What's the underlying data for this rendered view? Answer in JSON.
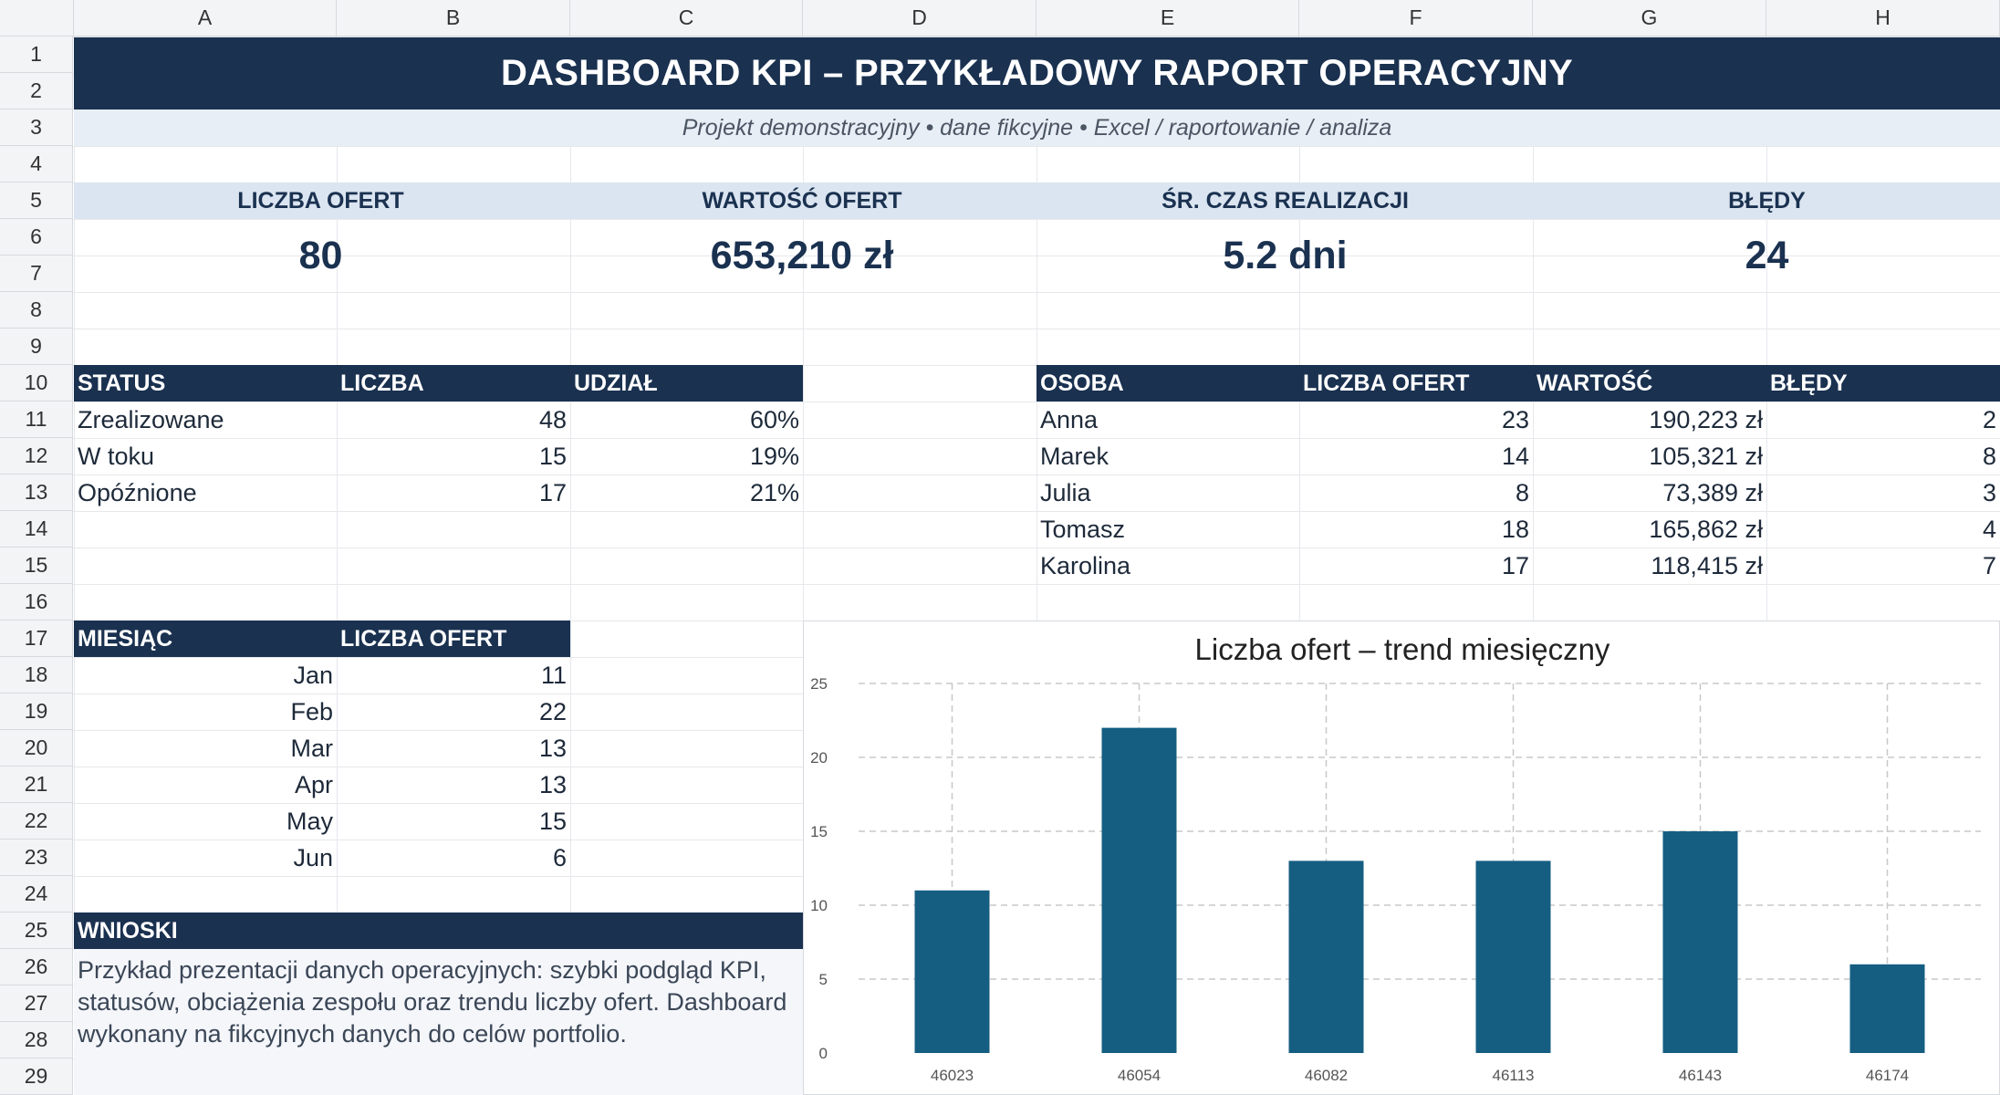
{
  "columns": [
    "A",
    "B",
    "C",
    "D",
    "E",
    "F",
    "G",
    "H"
  ],
  "rows": [
    "1",
    "2",
    "3",
    "4",
    "5",
    "6",
    "7",
    "8",
    "9",
    "10",
    "11",
    "12",
    "13",
    "14",
    "15",
    "16",
    "17",
    "18",
    "19",
    "20",
    "21",
    "22",
    "23",
    "24",
    "25",
    "26",
    "27",
    "28",
    "29"
  ],
  "title": "DASHBOARD KPI – PRZYKŁADOWY RAPORT OPERACYJNY",
  "subtitle": "Projekt demonstracyjny • dane fikcyjne • Excel / raportowanie / analiza",
  "kpis": [
    {
      "label": "LICZBA OFERT",
      "value": "80"
    },
    {
      "label": "WARTOŚĆ OFERT",
      "value": "653,210 zł"
    },
    {
      "label": "ŚR. CZAS REALIZACJI",
      "value": "5.2 dni"
    },
    {
      "label": "BŁĘDY",
      "value": "24"
    }
  ],
  "status_table": {
    "headers": [
      "STATUS",
      "LICZBA",
      "UDZIAŁ"
    ],
    "rows": [
      [
        "Zrealizowane",
        "48",
        "60%"
      ],
      [
        "W toku",
        "15",
        "19%"
      ],
      [
        "Opóźnione",
        "17",
        "21%"
      ]
    ]
  },
  "person_table": {
    "headers": [
      "OSOBA",
      "LICZBA OFERT",
      "WARTOŚĆ",
      "BŁĘDY"
    ],
    "rows": [
      [
        "Anna",
        "23",
        "190,223 zł",
        "2"
      ],
      [
        "Marek",
        "14",
        "105,321 zł",
        "8"
      ],
      [
        "Julia",
        "8",
        "73,389 zł",
        "3"
      ],
      [
        "Tomasz",
        "18",
        "165,862 zł",
        "4"
      ],
      [
        "Karolina",
        "17",
        "118,415 zł",
        "7"
      ]
    ]
  },
  "month_table": {
    "headers": [
      "MIESIĄC",
      "LICZBA OFERT"
    ],
    "rows": [
      [
        "Jan",
        "11"
      ],
      [
        "Feb",
        "22"
      ],
      [
        "Mar",
        "13"
      ],
      [
        "Apr",
        "13"
      ],
      [
        "May",
        "15"
      ],
      [
        "Jun",
        "6"
      ]
    ]
  },
  "notes": {
    "header": "WNIOSKI",
    "lines": [
      "Przykład prezentacji danych operacyjnych: szybki podgląd KPI,",
      "statusów, obciążenia zespołu oraz trendu liczby ofert. Dashboard",
      "wykonany na fikcyjnych danych do celów portfolio."
    ]
  },
  "chart_data": {
    "type": "bar",
    "title": "Liczba ofert – trend miesięczny",
    "categories": [
      "46023",
      "46054",
      "46082",
      "46113",
      "46143",
      "46174"
    ],
    "values": [
      11,
      22,
      13,
      13,
      15,
      6
    ],
    "ylim": [
      0,
      25
    ],
    "yticks": [
      0,
      5,
      10,
      15,
      20,
      25
    ],
    "grid": true,
    "xlabel": "",
    "ylabel": "",
    "colors": {
      "bar": "#155e82",
      "grid": "#c8c8c8"
    }
  },
  "colors": {
    "header_dark": "#1a3150",
    "kpi_header": "#dbe5f1",
    "subtitle_bg": "#e8eef6"
  }
}
